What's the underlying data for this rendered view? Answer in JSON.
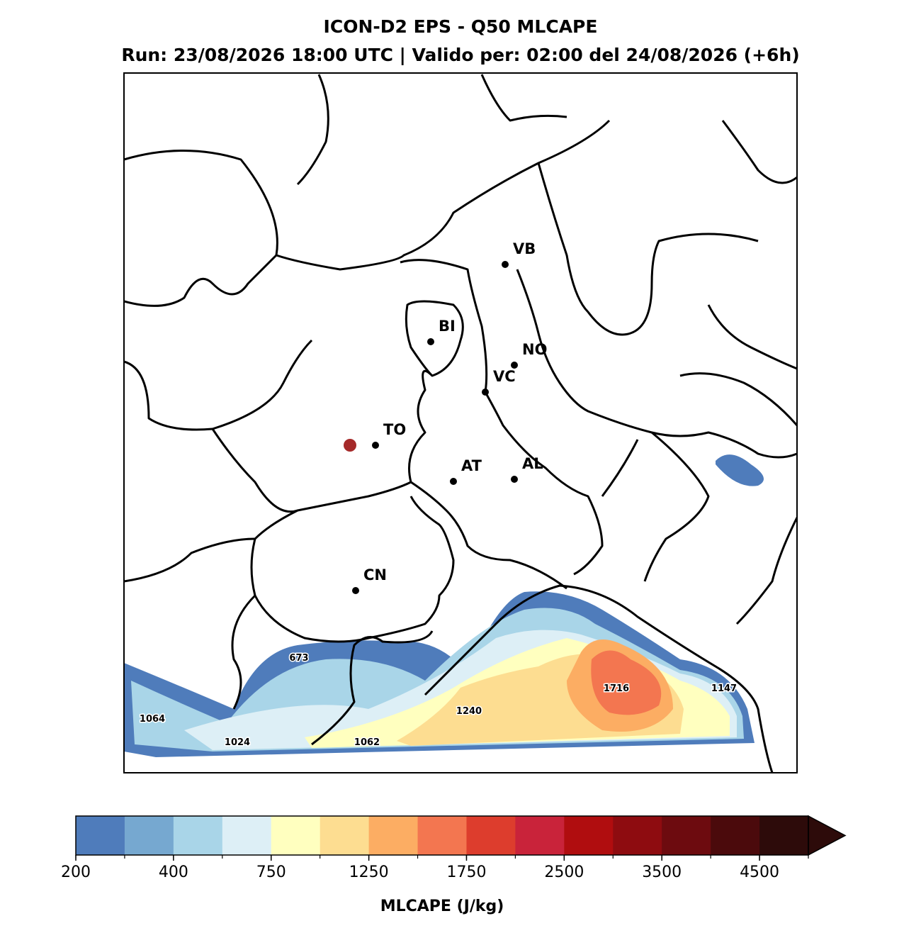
{
  "header": {
    "title": "ICON-D2 EPS - Q50 MLCAPE",
    "subtitle": "Run: 23/08/2026 18:00 UTC | Valido per: 02:00 del 24/08/2026 (+6h)"
  },
  "cities": [
    {
      "label": "VB"
    },
    {
      "label": "BI"
    },
    {
      "label": "NO"
    },
    {
      "label": "VC"
    },
    {
      "label": "TO"
    },
    {
      "label": "AT"
    },
    {
      "label": "AL"
    },
    {
      "label": "CN"
    }
  ],
  "contour_labels": [
    673,
    1064,
    1024,
    1062,
    1240,
    1716,
    1147
  ],
  "colorbar": {
    "label": "MLCAPE (J/kg)",
    "colors": [
      "#4f7cbb",
      "#76a8d0",
      "#a9d5e8",
      "#ddeff6",
      "#ffffbf",
      "#fddd91",
      "#fcad63",
      "#f37650",
      "#dd3d2d",
      "#c9233a",
      "#b00d0f",
      "#8e0c10",
      "#6d0b0f",
      "#4b0a0c",
      "#2d0b0a"
    ],
    "ticks": [
      200,
      400,
      750,
      1250,
      1750,
      2500,
      3500,
      4500
    ]
  }
}
